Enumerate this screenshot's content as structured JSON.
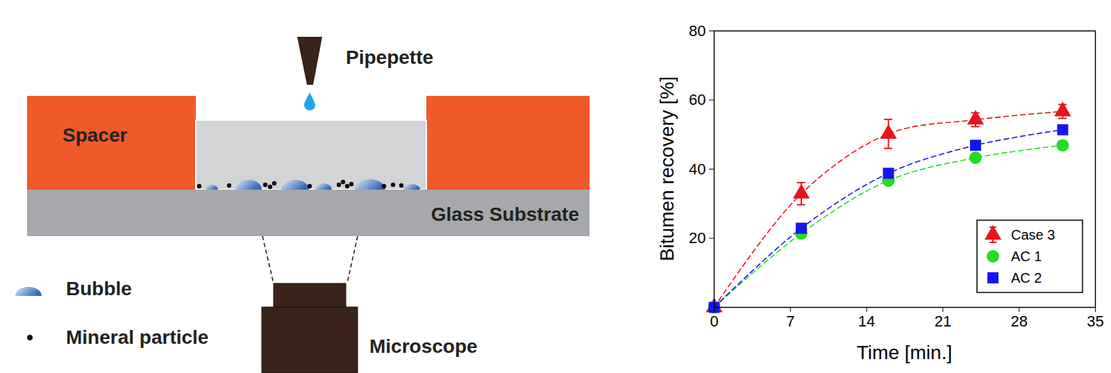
{
  "diagram": {
    "labels": {
      "pipette": "Pipepette",
      "spacer": "Spacer",
      "substrate": "Glass Substrate",
      "microscope": "Microscope"
    },
    "legend": [
      {
        "symbol": "bubble",
        "label": "Bubble"
      },
      {
        "symbol": "particle",
        "label": "Mineral particle"
      }
    ]
  },
  "chart_data": {
    "type": "line",
    "xlabel": "Time [min.]",
    "ylabel": "Bitumen recovery [%]",
    "x": [
      0,
      8,
      16,
      24,
      32
    ],
    "xlim": [
      0,
      35
    ],
    "ylim": [
      0,
      80
    ],
    "xticks": [
      0,
      7,
      14,
      21,
      28,
      35
    ],
    "yticks": [
      20,
      40,
      60,
      80
    ],
    "grid": false,
    "legend": "lower right",
    "series": [
      {
        "name": "Case 3",
        "color": "#e8141b",
        "marker": "triangle",
        "line_style": "dashed",
        "values": [
          0,
          32.9,
          50.2,
          54.3,
          56.7
        ],
        "errors": [
          null,
          3.2,
          4.2,
          2,
          2
        ]
      },
      {
        "name": "AC 1",
        "color": "#22dd22",
        "marker": "circle",
        "line_style": "dashed",
        "values": [
          0,
          21.4,
          36.7,
          43.3,
          46.9
        ]
      },
      {
        "name": "AC 2",
        "color": "#1515ee",
        "marker": "square",
        "line_style": "dashed",
        "values": [
          0,
          22.9,
          38.8,
          46.9,
          51.4
        ]
      }
    ]
  }
}
